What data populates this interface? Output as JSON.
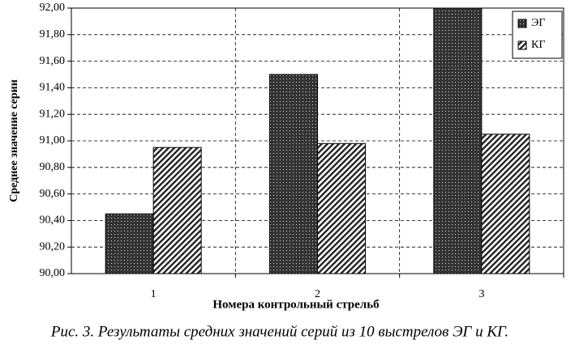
{
  "chart_data": {
    "type": "bar",
    "y_label": "Среднее значение серии",
    "x_label": "Номера контрольный стрельб",
    "caption": "Рис. 3. Результаты средних значений серий из 10 выстрелов ЭГ и КГ.",
    "categories": [
      "1",
      "2",
      "3"
    ],
    "series": [
      {
        "name": "ЭГ",
        "color": "#333333",
        "pattern": "dots",
        "values": [
          90.45,
          91.5,
          92.0
        ]
      },
      {
        "name": "КГ",
        "color": "#222222",
        "pattern": "hatch",
        "values": [
          90.95,
          90.98,
          91.05
        ]
      }
    ],
    "ylim": [
      90,
      92
    ],
    "yticks": [
      {
        "value": 90,
        "label": "90,00"
      },
      {
        "value": 90.2,
        "label": "90,20"
      },
      {
        "value": 90.4,
        "label": "90,40"
      },
      {
        "value": 90.6,
        "label": "90,60"
      },
      {
        "value": 90.8,
        "label": "90,80"
      },
      {
        "value": 91,
        "label": "91,00"
      },
      {
        "value": 91.2,
        "label": "91,20"
      },
      {
        "value": 91.4,
        "label": "91,40"
      },
      {
        "value": 91.6,
        "label": "91,60"
      },
      {
        "value": 91.8,
        "label": "91,80"
      },
      {
        "value": 92,
        "label": "92,00"
      }
    ],
    "grid": true,
    "legend": "top-right"
  }
}
